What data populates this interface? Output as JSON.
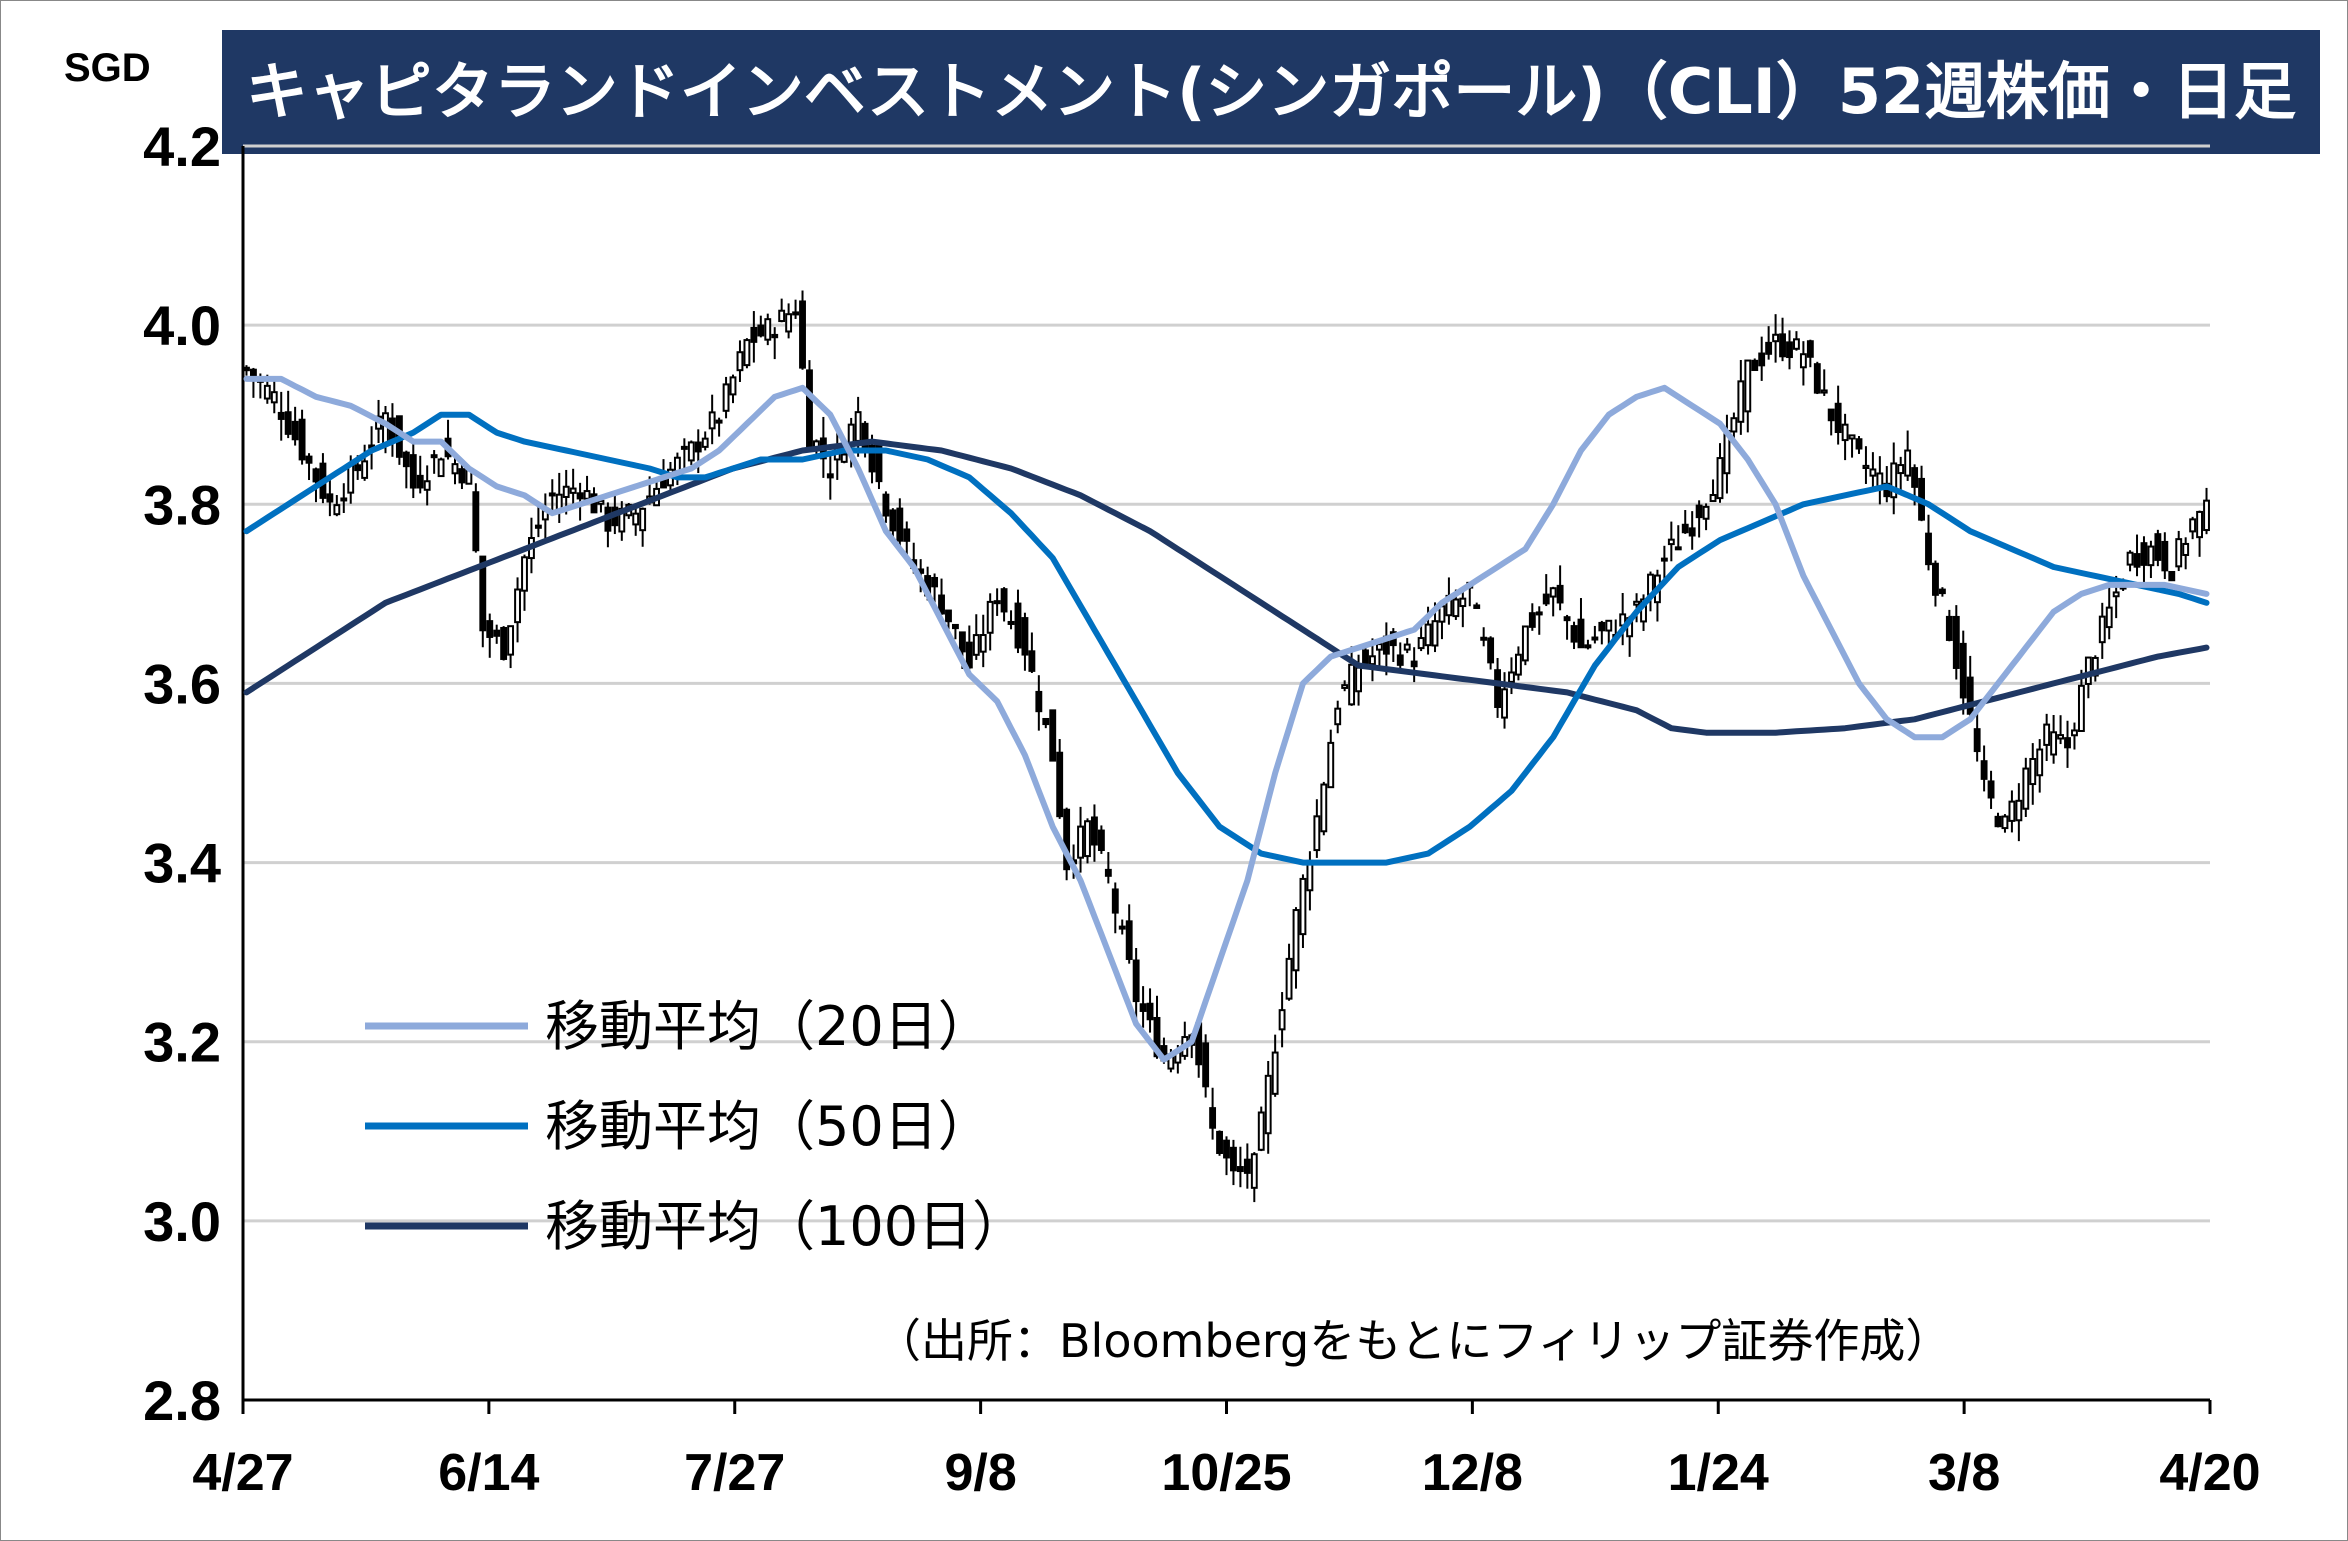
{
  "title": "キャピタランドインベストメント(シンガポール)（CLI）52週株価・日足",
  "unit": "SGD",
  "source_note": "（出所：Bloombergをもとにフィリップ証券作成）",
  "colors": {
    "title_bg": "#1f3864",
    "ma20": "#8eaadb",
    "ma50": "#0070c0",
    "ma100": "#1f3864",
    "candle": "#000000",
    "grid": "#d0d0d0"
  },
  "chart_data": {
    "type": "candlestick",
    "ylim": [
      2.8,
      4.2
    ],
    "y_ticks": [
      "2.8",
      "3.0",
      "3.2",
      "3.4",
      "3.6",
      "3.8",
      "4.0",
      "4.2"
    ],
    "x_ticks": [
      "4/27",
      "6/14",
      "7/27",
      "9/8",
      "10/25",
      "12/8",
      "1/24",
      "3/8",
      "4/20"
    ],
    "grid": "horizontal",
    "legend_position": "bottom-left",
    "legend": [
      {
        "label": "移動平均（20日）",
        "series": "ma20"
      },
      {
        "label": "移動平均（50日）",
        "series": "ma50"
      },
      {
        "label": "移動平均（100日）",
        "series": "ma100"
      }
    ],
    "close_anchors": [
      [
        0,
        3.95
      ],
      [
        4,
        3.92
      ],
      [
        8,
        3.86
      ],
      [
        12,
        3.8
      ],
      [
        16,
        3.84
      ],
      [
        20,
        3.9
      ],
      [
        24,
        3.82
      ],
      [
        28,
        3.86
      ],
      [
        32,
        3.83
      ],
      [
        34,
        3.66
      ],
      [
        37,
        3.64
      ],
      [
        40,
        3.74
      ],
      [
        44,
        3.81
      ],
      [
        48,
        3.82
      ],
      [
        52,
        3.78
      ],
      [
        56,
        3.79
      ],
      [
        60,
        3.83
      ],
      [
        64,
        3.86
      ],
      [
        68,
        3.9
      ],
      [
        72,
        3.98
      ],
      [
        76,
        4.0
      ],
      [
        79,
        4.02
      ],
      [
        81,
        3.88
      ],
      [
        84,
        3.84
      ],
      [
        88,
        3.9
      ],
      [
        92,
        3.8
      ],
      [
        96,
        3.73
      ],
      [
        100,
        3.69
      ],
      [
        104,
        3.62
      ],
      [
        108,
        3.7
      ],
      [
        112,
        3.64
      ],
      [
        116,
        3.52
      ],
      [
        118,
        3.4
      ],
      [
        121,
        3.44
      ],
      [
        124,
        3.38
      ],
      [
        128,
        3.25
      ],
      [
        132,
        3.18
      ],
      [
        136,
        3.22
      ],
      [
        139,
        3.1
      ],
      [
        142,
        3.05
      ],
      [
        145,
        3.06
      ],
      [
        148,
        3.2
      ],
      [
        151,
        3.34
      ],
      [
        154,
        3.45
      ],
      [
        157,
        3.58
      ],
      [
        160,
        3.62
      ],
      [
        164,
        3.64
      ],
      [
        168,
        3.63
      ],
      [
        172,
        3.68
      ],
      [
        176,
        3.7
      ],
      [
        180,
        3.58
      ],
      [
        184,
        3.66
      ],
      [
        188,
        3.7
      ],
      [
        192,
        3.64
      ],
      [
        196,
        3.66
      ],
      [
        200,
        3.68
      ],
      [
        204,
        3.74
      ],
      [
        208,
        3.78
      ],
      [
        212,
        3.84
      ],
      [
        216,
        3.95
      ],
      [
        220,
        3.98
      ],
      [
        224,
        3.97
      ],
      [
        228,
        3.9
      ],
      [
        232,
        3.85
      ],
      [
        236,
        3.82
      ],
      [
        239,
        3.86
      ],
      [
        242,
        3.74
      ],
      [
        245,
        3.66
      ],
      [
        248,
        3.56
      ],
      [
        250,
        3.48
      ],
      [
        253,
        3.44
      ],
      [
        256,
        3.5
      ],
      [
        259,
        3.54
      ],
      [
        262,
        3.53
      ],
      [
        265,
        3.62
      ],
      [
        268,
        3.68
      ],
      [
        271,
        3.74
      ],
      [
        274,
        3.75
      ],
      [
        277,
        3.73
      ],
      [
        280,
        3.78
      ],
      [
        282,
        3.79
      ]
    ],
    "ma20_anchors": [
      [
        0,
        3.94
      ],
      [
        5,
        3.94
      ],
      [
        10,
        3.92
      ],
      [
        15,
        3.91
      ],
      [
        20,
        3.89
      ],
      [
        24,
        3.87
      ],
      [
        28,
        3.87
      ],
      [
        32,
        3.84
      ],
      [
        36,
        3.82
      ],
      [
        40,
        3.81
      ],
      [
        44,
        3.79
      ],
      [
        48,
        3.8
      ],
      [
        52,
        3.81
      ],
      [
        56,
        3.82
      ],
      [
        60,
        3.83
      ],
      [
        64,
        3.84
      ],
      [
        68,
        3.86
      ],
      [
        72,
        3.89
      ],
      [
        76,
        3.92
      ],
      [
        80,
        3.93
      ],
      [
        84,
        3.9
      ],
      [
        88,
        3.84
      ],
      [
        92,
        3.77
      ],
      [
        96,
        3.73
      ],
      [
        100,
        3.67
      ],
      [
        104,
        3.61
      ],
      [
        108,
        3.58
      ],
      [
        112,
        3.52
      ],
      [
        116,
        3.44
      ],
      [
        120,
        3.38
      ],
      [
        124,
        3.3
      ],
      [
        128,
        3.22
      ],
      [
        132,
        3.18
      ],
      [
        136,
        3.2
      ],
      [
        140,
        3.29
      ],
      [
        144,
        3.38
      ],
      [
        148,
        3.5
      ],
      [
        152,
        3.6
      ],
      [
        156,
        3.63
      ],
      [
        160,
        3.64
      ],
      [
        164,
        3.65
      ],
      [
        168,
        3.66
      ],
      [
        172,
        3.69
      ],
      [
        176,
        3.71
      ],
      [
        180,
        3.73
      ],
      [
        184,
        3.75
      ],
      [
        188,
        3.8
      ],
      [
        192,
        3.86
      ],
      [
        196,
        3.9
      ],
      [
        200,
        3.92
      ],
      [
        204,
        3.93
      ],
      [
        208,
        3.91
      ],
      [
        212,
        3.89
      ],
      [
        216,
        3.85
      ],
      [
        220,
        3.8
      ],
      [
        224,
        3.72
      ],
      [
        228,
        3.66
      ],
      [
        232,
        3.6
      ],
      [
        236,
        3.56
      ],
      [
        240,
        3.54
      ],
      [
        244,
        3.54
      ],
      [
        248,
        3.56
      ],
      [
        252,
        3.6
      ],
      [
        256,
        3.64
      ],
      [
        260,
        3.68
      ],
      [
        264,
        3.7
      ],
      [
        268,
        3.71
      ],
      [
        272,
        3.71
      ],
      [
        276,
        3.71
      ],
      [
        282,
        3.7
      ]
    ],
    "ma50_anchors": [
      [
        0,
        3.77
      ],
      [
        6,
        3.8
      ],
      [
        12,
        3.83
      ],
      [
        18,
        3.86
      ],
      [
        24,
        3.88
      ],
      [
        28,
        3.9
      ],
      [
        32,
        3.9
      ],
      [
        36,
        3.88
      ],
      [
        40,
        3.87
      ],
      [
        46,
        3.86
      ],
      [
        52,
        3.85
      ],
      [
        58,
        3.84
      ],
      [
        62,
        3.83
      ],
      [
        66,
        3.83
      ],
      [
        70,
        3.84
      ],
      [
        74,
        3.85
      ],
      [
        80,
        3.85
      ],
      [
        86,
        3.86
      ],
      [
        92,
        3.86
      ],
      [
        98,
        3.85
      ],
      [
        104,
        3.83
      ],
      [
        110,
        3.79
      ],
      [
        116,
        3.74
      ],
      [
        122,
        3.66
      ],
      [
        128,
        3.58
      ],
      [
        134,
        3.5
      ],
      [
        140,
        3.44
      ],
      [
        146,
        3.41
      ],
      [
        152,
        3.4
      ],
      [
        158,
        3.4
      ],
      [
        164,
        3.4
      ],
      [
        170,
        3.41
      ],
      [
        176,
        3.44
      ],
      [
        182,
        3.48
      ],
      [
        188,
        3.54
      ],
      [
        194,
        3.62
      ],
      [
        200,
        3.68
      ],
      [
        206,
        3.73
      ],
      [
        212,
        3.76
      ],
      [
        218,
        3.78
      ],
      [
        224,
        3.8
      ],
      [
        230,
        3.81
      ],
      [
        236,
        3.82
      ],
      [
        242,
        3.8
      ],
      [
        248,
        3.77
      ],
      [
        254,
        3.75
      ],
      [
        260,
        3.73
      ],
      [
        266,
        3.72
      ],
      [
        272,
        3.71
      ],
      [
        278,
        3.7
      ],
      [
        282,
        3.69
      ]
    ],
    "ma100_anchors": [
      [
        0,
        3.59
      ],
      [
        10,
        3.64
      ],
      [
        20,
        3.69
      ],
      [
        30,
        3.72
      ],
      [
        40,
        3.75
      ],
      [
        50,
        3.78
      ],
      [
        60,
        3.81
      ],
      [
        70,
        3.84
      ],
      [
        80,
        3.86
      ],
      [
        90,
        3.87
      ],
      [
        100,
        3.86
      ],
      [
        110,
        3.84
      ],
      [
        120,
        3.81
      ],
      [
        130,
        3.77
      ],
      [
        140,
        3.72
      ],
      [
        150,
        3.67
      ],
      [
        160,
        3.62
      ],
      [
        170,
        3.61
      ],
      [
        180,
        3.6
      ],
      [
        190,
        3.59
      ],
      [
        200,
        3.57
      ],
      [
        205,
        3.55
      ],
      [
        210,
        3.545
      ],
      [
        220,
        3.545
      ],
      [
        230,
        3.55
      ],
      [
        240,
        3.56
      ],
      [
        250,
        3.58
      ],
      [
        260,
        3.6
      ],
      [
        265,
        3.61
      ],
      [
        270,
        3.62
      ],
      [
        275,
        3.63
      ],
      [
        282,
        3.64
      ]
    ]
  }
}
